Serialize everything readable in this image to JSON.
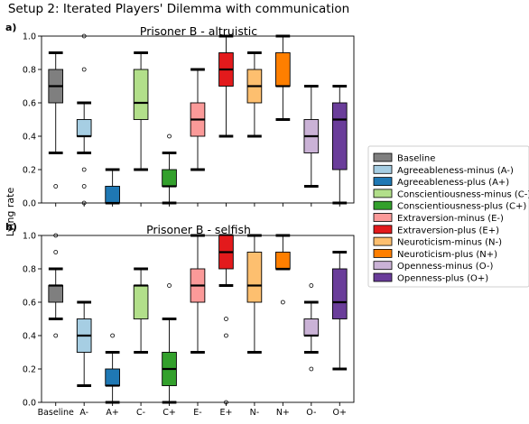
{
  "figure_title": "Setup 2: Iterated Players' Dilemma with communication",
  "shared_ylabel": "Lying rate",
  "colors": {
    "Baseline": "#7f7f7f",
    "A-": "#a6cee3",
    "A+": "#1f78b4",
    "C-": "#b2df8a",
    "C+": "#33a02c",
    "E-": "#fb9a99",
    "E+": "#e31a1c",
    "N-": "#fdbf6f",
    "N+": "#ff7f00",
    "O-": "#cab2d6",
    "O+": "#6a3d9a"
  },
  "legend": [
    {
      "key": "Baseline",
      "label": "Baseline"
    },
    {
      "key": "A-",
      "label": "Agreeableness-minus (A-)"
    },
    {
      "key": "A+",
      "label": "Agreeableness-plus (A+)"
    },
    {
      "key": "C-",
      "label": "Conscientiousness-minus (C-)"
    },
    {
      "key": "C+",
      "label": "Conscientiousness-plus (C+)"
    },
    {
      "key": "E-",
      "label": "Extraversion-minus (E-)"
    },
    {
      "key": "E+",
      "label": "Extraversion-plus (E+)"
    },
    {
      "key": "N-",
      "label": "Neuroticism-minus (N-)"
    },
    {
      "key": "N+",
      "label": "Neuroticism-plus (N+)"
    },
    {
      "key": "O-",
      "label": "Openness-minus (O-)"
    },
    {
      "key": "O+",
      "label": "Openness-plus (O+)"
    }
  ],
  "chart_data": [
    {
      "type": "box",
      "panel_label": "a)",
      "title": "Prisoner B - altruistic",
      "ylim": [
        0,
        1
      ],
      "yticks": [
        "0.0",
        "0.2",
        "0.4",
        "0.6",
        "0.8",
        "1.0"
      ],
      "categories": [
        "Baseline",
        "A-",
        "A+",
        "C-",
        "C+",
        "E-",
        "E+",
        "N-",
        "N+",
        "O-",
        "O+"
      ],
      "boxes": [
        {
          "category": "Baseline",
          "whislo": 0.3,
          "q1": 0.6,
          "med": 0.7,
          "q3": 0.8,
          "whishi": 0.9,
          "fliers": [
            0.1
          ]
        },
        {
          "category": "A-",
          "whislo": 0.3,
          "q1": 0.4,
          "med": 0.4,
          "q3": 0.5,
          "whishi": 0.6,
          "fliers": [
            0.0,
            0.1,
            0.2,
            0.8,
            1.0
          ]
        },
        {
          "category": "A+",
          "whislo": 0.0,
          "q1": 0.0,
          "med": 0.0,
          "q3": 0.1,
          "whishi": 0.2,
          "fliers": []
        },
        {
          "category": "C-",
          "whislo": 0.2,
          "q1": 0.5,
          "med": 0.6,
          "q3": 0.8,
          "whishi": 0.9,
          "fliers": []
        },
        {
          "category": "C+",
          "whislo": 0.0,
          "q1": 0.1,
          "med": 0.1,
          "q3": 0.2,
          "whishi": 0.3,
          "fliers": [
            0.4
          ]
        },
        {
          "category": "E-",
          "whislo": 0.2,
          "q1": 0.4,
          "med": 0.5,
          "q3": 0.6,
          "whishi": 0.8,
          "fliers": []
        },
        {
          "category": "E+",
          "whislo": 0.4,
          "q1": 0.7,
          "med": 0.8,
          "q3": 0.9,
          "whishi": 1.0,
          "fliers": []
        },
        {
          "category": "N-",
          "whislo": 0.4,
          "q1": 0.6,
          "med": 0.7,
          "q3": 0.8,
          "whishi": 0.9,
          "fliers": []
        },
        {
          "category": "N+",
          "whislo": 0.5,
          "q1": 0.7,
          "med": 0.7,
          "q3": 0.9,
          "whishi": 1.0,
          "fliers": []
        },
        {
          "category": "O-",
          "whislo": 0.1,
          "q1": 0.3,
          "med": 0.4,
          "q3": 0.5,
          "whishi": 0.7,
          "fliers": []
        },
        {
          "category": "O+",
          "whislo": 0.0,
          "q1": 0.2,
          "med": 0.5,
          "q3": 0.6,
          "whishi": 0.7,
          "fliers": []
        }
      ]
    },
    {
      "type": "box",
      "panel_label": "b)",
      "title": "Prisoner B - selfish",
      "ylim": [
        0,
        1
      ],
      "yticks": [
        "0.0",
        "0.2",
        "0.4",
        "0.6",
        "0.8",
        "1.0"
      ],
      "xticklabels": [
        "Baseline",
        "A-",
        "A+",
        "C-",
        "C+",
        "E-",
        "E+",
        "N-",
        "N+",
        "O-",
        "O+"
      ],
      "categories": [
        "Baseline",
        "A-",
        "A+",
        "C-",
        "C+",
        "E-",
        "E+",
        "N-",
        "N+",
        "O-",
        "O+"
      ],
      "boxes": [
        {
          "category": "Baseline",
          "whislo": 0.5,
          "q1": 0.6,
          "med": 0.7,
          "q3": 0.7,
          "whishi": 0.8,
          "fliers": [
            0.4,
            0.9,
            1.0
          ]
        },
        {
          "category": "A-",
          "whislo": 0.1,
          "q1": 0.3,
          "med": 0.4,
          "q3": 0.5,
          "whishi": 0.6,
          "fliers": []
        },
        {
          "category": "A+",
          "whislo": 0.0,
          "q1": 0.1,
          "med": 0.1,
          "q3": 0.2,
          "whishi": 0.3,
          "fliers": [
            0.4
          ]
        },
        {
          "category": "C-",
          "whislo": 0.3,
          "q1": 0.5,
          "med": 0.7,
          "q3": 0.7,
          "whishi": 0.8,
          "fliers": []
        },
        {
          "category": "C+",
          "whislo": 0.0,
          "q1": 0.1,
          "med": 0.2,
          "q3": 0.3,
          "whishi": 0.5,
          "fliers": [
            0.7
          ]
        },
        {
          "category": "E-",
          "whislo": 0.3,
          "q1": 0.6,
          "med": 0.7,
          "q3": 0.8,
          "whishi": 1.0,
          "fliers": []
        },
        {
          "category": "E+",
          "whislo": 0.7,
          "q1": 0.8,
          "med": 0.9,
          "q3": 1.0,
          "whishi": 1.0,
          "fliers": [
            0.0,
            0.4,
            0.5
          ]
        },
        {
          "category": "N-",
          "whislo": 0.3,
          "q1": 0.6,
          "med": 0.7,
          "q3": 0.9,
          "whishi": 1.0,
          "fliers": []
        },
        {
          "category": "N+",
          "whislo": 0.8,
          "q1": 0.8,
          "med": 0.8,
          "q3": 0.9,
          "whishi": 1.0,
          "fliers": [
            0.6
          ]
        },
        {
          "category": "O-",
          "whislo": 0.3,
          "q1": 0.4,
          "med": 0.4,
          "q3": 0.5,
          "whishi": 0.6,
          "fliers": [
            0.2,
            0.7
          ]
        },
        {
          "category": "O+",
          "whislo": 0.2,
          "q1": 0.5,
          "med": 0.6,
          "q3": 0.8,
          "whishi": 0.9,
          "fliers": []
        }
      ]
    }
  ]
}
